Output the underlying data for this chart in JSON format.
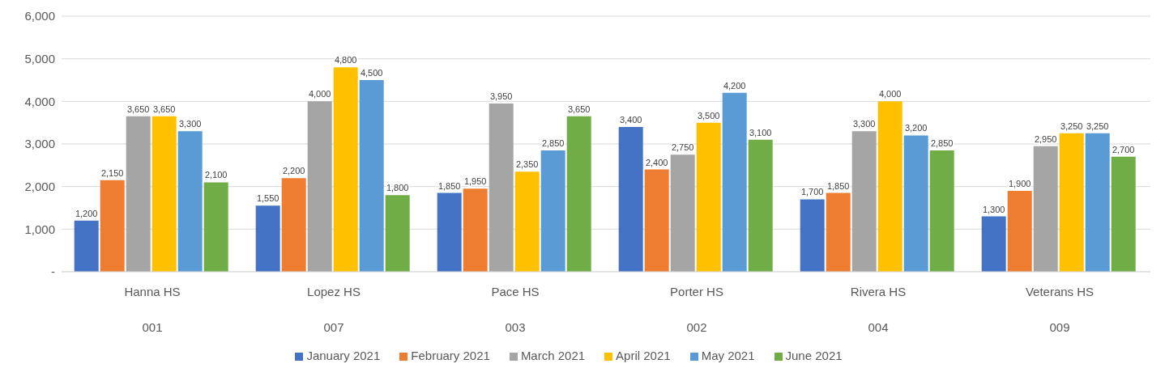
{
  "chart_data": {
    "type": "bar",
    "categories": [
      "Hanna HS\n001",
      "Lopez  HS\n007",
      "Pace HS\n003",
      "Porter HS\n002",
      "Rivera HS\n004",
      "Veterans HS\n009"
    ],
    "series": [
      {
        "name": "January 2021",
        "color": "#4472c4",
        "values": [
          1200,
          1550,
          1850,
          3400,
          1700,
          1300
        ],
        "value_labels": [
          "1,200",
          "1,550",
          "1,850",
          "3,400",
          "1,700",
          "1,300"
        ]
      },
      {
        "name": "February 2021",
        "color": "#ed7d31",
        "values": [
          2150,
          2200,
          1950,
          2400,
          1850,
          1900
        ],
        "value_labels": [
          "2,150",
          "2,200",
          "1,950",
          "2,400",
          "1,850",
          "1,900"
        ]
      },
      {
        "name": "March 2021",
        "color": "#a5a5a5",
        "values": [
          3650,
          4000,
          3950,
          2750,
          3300,
          2950
        ],
        "value_labels": [
          "3,650",
          "4,000",
          "3,950",
          "2,750",
          "3,300",
          "2,950"
        ]
      },
      {
        "name": "April 2021",
        "color": "#ffc000",
        "values": [
          3650,
          4800,
          2350,
          3500,
          4000,
          3250
        ],
        "value_labels": [
          "3,650",
          "4,800",
          "2,350",
          "3,500",
          "4,000",
          "3,250"
        ]
      },
      {
        "name": "May 2021",
        "color": "#5b9bd5",
        "values": [
          3300,
          4500,
          2850,
          4200,
          3200,
          3250
        ],
        "value_labels": [
          "3,300",
          "4,500",
          "2,850",
          "4,200",
          "3,200",
          "3,250"
        ]
      },
      {
        "name": "June 2021",
        "color": "#70ad47",
        "values": [
          2100,
          1800,
          3650,
          3100,
          2850,
          2700
        ],
        "value_labels": [
          "2,100",
          "1,800",
          "3,650",
          "3,100",
          "2,850",
          "2,700"
        ]
      }
    ],
    "ylim": [
      0,
      6000
    ],
    "yticks": [
      {
        "value": 0,
        "label": "-"
      },
      {
        "value": 1000,
        "label": "1,000"
      },
      {
        "value": 2000,
        "label": "2,000"
      },
      {
        "value": 3000,
        "label": "3,000"
      },
      {
        "value": 4000,
        "label": "4,000"
      },
      {
        "value": 5000,
        "label": "5,000"
      },
      {
        "value": 6000,
        "label": "6,000"
      }
    ],
    "grid": "y",
    "legend": "bottom"
  }
}
